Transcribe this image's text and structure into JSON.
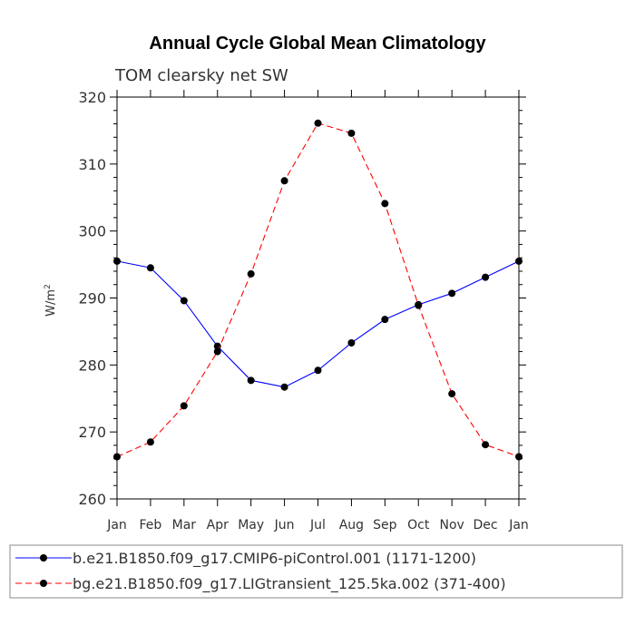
{
  "chart_data": {
    "type": "line",
    "title": "Annual Cycle Global Mean Climatology",
    "subtitle": "TOM clearsky net SW",
    "ylabel_base": "W/m",
    "ylabel_sup": "2",
    "xlabel": "",
    "ylim": [
      260,
      320
    ],
    "yticks": [
      260,
      270,
      280,
      290,
      300,
      310,
      320
    ],
    "categories": [
      "Jan",
      "Feb",
      "Mar",
      "Apr",
      "May",
      "Jun",
      "Jul",
      "Aug",
      "Sep",
      "Oct",
      "Nov",
      "Dec",
      "Jan"
    ],
    "series": [
      {
        "name": "b.e21.B1850.f09_g17.CMIP6-piControl.001 (1171-1200)",
        "color": "#0000ff",
        "dash": "solid",
        "values": [
          295.5,
          294.5,
          289.6,
          282.8,
          277.7,
          276.7,
          279.2,
          283.3,
          286.8,
          289.0,
          290.7,
          293.1,
          295.5
        ]
      },
      {
        "name": "bg.e21.B1850.f09_g17.LIGtransient_125.5ka.002 (371-400)",
        "color": "#ff0000",
        "dash": "dashed",
        "values": [
          266.3,
          268.5,
          273.9,
          282.0,
          293.6,
          307.5,
          316.1,
          314.6,
          304.1,
          288.9,
          275.7,
          268.1,
          266.3
        ]
      }
    ],
    "legend_position": "bottom"
  }
}
